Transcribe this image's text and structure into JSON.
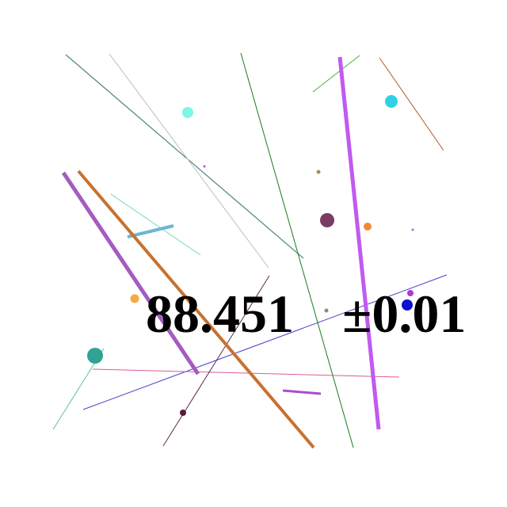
{
  "readout": {
    "value": "88.451",
    "tolerance": "±0.01"
  },
  "colors": {
    "background": "#ffffff",
    "text": "#000000"
  }
}
